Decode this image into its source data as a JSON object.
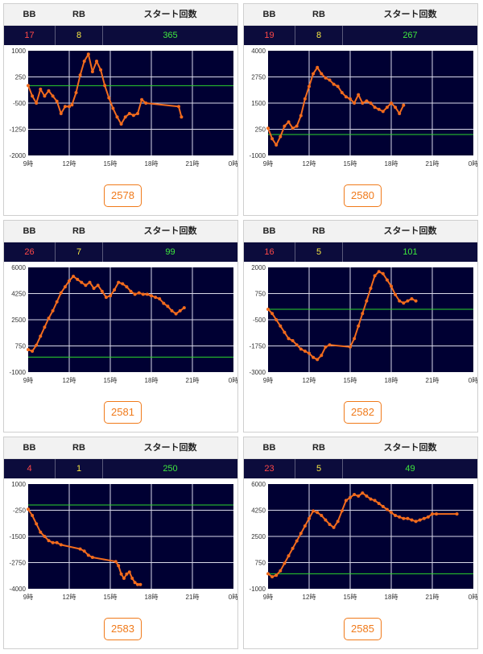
{
  "header": {
    "bb_label": "BB",
    "rb_label": "RB",
    "start_label": "スタート回数"
  },
  "colors": {
    "plot_bg": "#000033",
    "line": "#f26b1d",
    "baseline": "#2bd62b",
    "grid": "#d8d8e8",
    "bb": "#ff4848",
    "rb": "#f5e642",
    "start": "#3ee83e",
    "button": "#f07a1a"
  },
  "machines": [
    {
      "number": "2578",
      "bb": "17",
      "rb": "8",
      "start": "365"
    },
    {
      "number": "2580",
      "bb": "19",
      "rb": "8",
      "start": "267"
    },
    {
      "number": "2581",
      "bb": "26",
      "rb": "7",
      "start": "99"
    },
    {
      "number": "2582",
      "bb": "16",
      "rb": "5",
      "start": "101"
    },
    {
      "number": "2583",
      "bb": "4",
      "rb": "1",
      "start": "250"
    },
    {
      "number": "2585",
      "bb": "23",
      "rb": "5",
      "start": "49"
    }
  ],
  "chart_data": [
    {
      "type": "line",
      "title": "2578",
      "x_ticks": [
        "9時",
        "12時",
        "15時",
        "18時",
        "21時",
        "0時"
      ],
      "y_ticks": [
        "1000",
        "250",
        "-500",
        "-1250",
        "-2000"
      ],
      "ylim": [
        -2000,
        1000
      ],
      "xlim": [
        9,
        24
      ],
      "baseline": 0,
      "x": [
        9.0,
        9.3,
        9.6,
        9.9,
        10.2,
        10.5,
        10.8,
        11.1,
        11.4,
        11.7,
        12.0,
        12.2,
        12.5,
        12.8,
        13.1,
        13.4,
        13.7,
        14.0,
        14.3,
        14.6,
        14.9,
        15.2,
        15.5,
        15.8,
        16.1,
        16.4,
        16.7,
        17.0,
        17.3,
        17.6,
        20.0,
        20.2
      ],
      "y": [
        0,
        -300,
        -500,
        -100,
        -300,
        -150,
        -300,
        -450,
        -800,
        -600,
        -600,
        -550,
        -200,
        300,
        700,
        900,
        400,
        700,
        450,
        0,
        -350,
        -650,
        -900,
        -1100,
        -900,
        -800,
        -850,
        -800,
        -400,
        -500,
        -600,
        -900
      ]
    },
    {
      "type": "line",
      "title": "2580",
      "x_ticks": [
        "9時",
        "12時",
        "15時",
        "18時",
        "21時",
        "0時"
      ],
      "y_ticks": [
        "4000",
        "2750",
        "1500",
        "250",
        "-1000"
      ],
      "ylim": [
        -1000,
        4000
      ],
      "xlim": [
        9,
        24
      ],
      "baseline": 0,
      "x": [
        9.0,
        9.3,
        9.6,
        9.9,
        10.2,
        10.5,
        10.8,
        11.1,
        11.4,
        11.7,
        12.0,
        12.3,
        12.6,
        12.9,
        13.2,
        13.5,
        13.8,
        14.1,
        14.4,
        14.7,
        15.0,
        15.3,
        15.6,
        15.9,
        16.2,
        16.5,
        16.8,
        17.1,
        17.4,
        17.7,
        18.0,
        18.3,
        18.6,
        18.9
      ],
      "y": [
        300,
        -200,
        -500,
        -100,
        400,
        600,
        300,
        400,
        900,
        1700,
        2300,
        2900,
        3200,
        2900,
        2700,
        2600,
        2400,
        2300,
        2000,
        1800,
        1700,
        1500,
        1900,
        1500,
        1600,
        1500,
        1300,
        1200,
        1100,
        1300,
        1500,
        1300,
        1000,
        1400
      ]
    },
    {
      "type": "line",
      "title": "2581",
      "x_ticks": [
        "9時",
        "12時",
        "15時",
        "18時",
        "21時",
        "0時"
      ],
      "y_ticks": [
        "6000",
        "4250",
        "2500",
        "750",
        "-1000"
      ],
      "ylim": [
        -1000,
        6000
      ],
      "xlim": [
        9,
        24
      ],
      "baseline": 0,
      "x": [
        9.0,
        9.3,
        9.6,
        9.9,
        10.2,
        10.5,
        10.8,
        11.1,
        11.4,
        11.7,
        12.0,
        12.3,
        12.6,
        12.9,
        13.2,
        13.5,
        13.8,
        14.1,
        14.4,
        14.7,
        15.0,
        15.3,
        15.6,
        15.9,
        16.2,
        16.5,
        16.8,
        17.1,
        17.4,
        17.7,
        18.0,
        18.3,
        18.6,
        18.9,
        19.2,
        19.5,
        19.8,
        20.1,
        20.4
      ],
      "y": [
        500,
        400,
        800,
        1400,
        2000,
        2600,
        3100,
        3700,
        4300,
        4700,
        5100,
        5400,
        5200,
        5000,
        4800,
        5000,
        4600,
        4800,
        4400,
        4000,
        4100,
        4500,
        5000,
        4900,
        4700,
        4400,
        4200,
        4300,
        4200,
        4200,
        4100,
        4000,
        3900,
        3600,
        3400,
        3100,
        2900,
        3100,
        3300
      ]
    },
    {
      "type": "line",
      "title": "2582",
      "x_ticks": [
        "9時",
        "12時",
        "15時",
        "18時",
        "21時",
        "0時"
      ],
      "y_ticks": [
        "2000",
        "750",
        "-500",
        "-1750",
        "-3000"
      ],
      "ylim": [
        -3000,
        2000
      ],
      "xlim": [
        9,
        24
      ],
      "baseline": 0,
      "x": [
        9.0,
        9.3,
        9.6,
        9.9,
        10.2,
        10.5,
        10.8,
        11.1,
        11.4,
        11.7,
        12.0,
        12.3,
        12.6,
        12.9,
        13.2,
        13.5,
        15.0,
        15.3,
        15.6,
        15.9,
        16.2,
        16.5,
        16.8,
        17.1,
        17.4,
        17.7,
        18.0,
        18.3,
        18.6,
        18.9,
        19.2,
        19.5,
        19.8
      ],
      "y": [
        0,
        -200,
        -500,
        -800,
        -1100,
        -1400,
        -1500,
        -1700,
        -1900,
        -2000,
        -2100,
        -2300,
        -2400,
        -2200,
        -1800,
        -1700,
        -1800,
        -1400,
        -800,
        -200,
        400,
        1000,
        1600,
        1800,
        1700,
        1400,
        1100,
        700,
        400,
        300,
        400,
        500,
        400
      ]
    },
    {
      "type": "line",
      "title": "2583",
      "x_ticks": [
        "9時",
        "12時",
        "15時",
        "18時",
        "21時",
        "0時"
      ],
      "y_ticks": [
        "1000",
        "-250",
        "-1500",
        "-2750",
        "-4000"
      ],
      "ylim": [
        -4000,
        1000
      ],
      "xlim": [
        9,
        24
      ],
      "baseline": 0,
      "x": [
        9.0,
        9.3,
        9.6,
        9.9,
        10.2,
        10.5,
        10.8,
        11.1,
        11.4,
        12.8,
        13.1,
        13.4,
        13.7,
        15.4,
        15.6,
        15.8,
        16.0,
        16.2,
        16.4,
        16.6,
        16.8,
        17.0,
        17.2
      ],
      "y": [
        -200,
        -500,
        -900,
        -1300,
        -1500,
        -1700,
        -1800,
        -1800,
        -1900,
        -2100,
        -2200,
        -2400,
        -2500,
        -2700,
        -2900,
        -3300,
        -3500,
        -3300,
        -3200,
        -3500,
        -3700,
        -3800,
        -3800
      ]
    },
    {
      "type": "line",
      "title": "2585",
      "x_ticks": [
        "9時",
        "12時",
        "15時",
        "18時",
        "21時",
        "0時"
      ],
      "y_ticks": [
        "6000",
        "4250",
        "2500",
        "750",
        "-1000"
      ],
      "ylim": [
        -1000,
        6000
      ],
      "xlim": [
        9,
        24
      ],
      "baseline": 0,
      "x": [
        9.0,
        9.3,
        9.6,
        9.9,
        10.2,
        10.5,
        10.8,
        11.1,
        11.4,
        11.7,
        12.0,
        12.3,
        12.6,
        12.9,
        13.2,
        13.5,
        13.8,
        14.1,
        14.4,
        14.7,
        15.0,
        15.3,
        15.6,
        15.9,
        16.2,
        16.5,
        16.8,
        17.1,
        17.4,
        17.7,
        18.0,
        18.3,
        18.6,
        18.9,
        19.2,
        19.5,
        19.8,
        20.1,
        20.4,
        20.7,
        21.0,
        21.3,
        22.8
      ],
      "y": [
        0,
        -200,
        -100,
        200,
        700,
        1200,
        1700,
        2200,
        2700,
        3200,
        3700,
        4200,
        4100,
        3900,
        3600,
        3300,
        3100,
        3500,
        4200,
        4900,
        5100,
        5300,
        5200,
        5400,
        5200,
        5000,
        4900,
        4700,
        4500,
        4300,
        4100,
        3900,
        3800,
        3700,
        3700,
        3600,
        3500,
        3600,
        3700,
        3800,
        4000,
        4000,
        4000
      ]
    }
  ]
}
